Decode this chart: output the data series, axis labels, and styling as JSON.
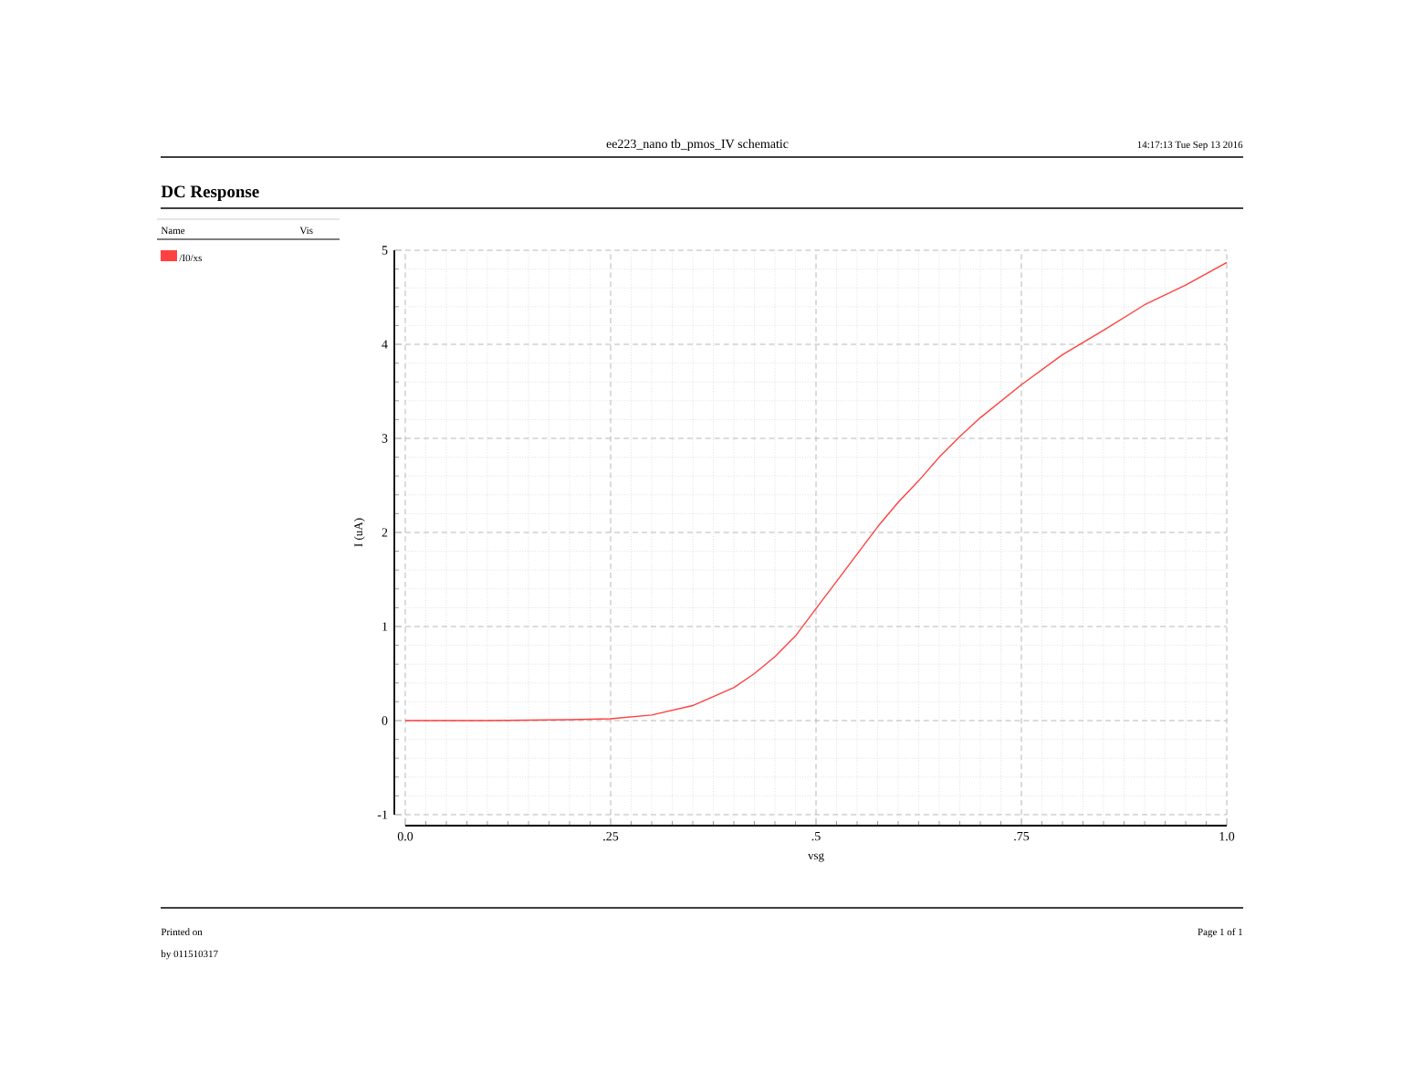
{
  "chart_data": {
    "type": "line",
    "title": "DC Response",
    "subtitle": "ee223_nano tb_pmos_IV schematic",
    "xlabel": "vsg",
    "ylabel": "I (uA)",
    "legend_title": "Name",
    "annotations": [
      "Vis",
      "14:17:13  Tue Sep 13 2016",
      "Printed on",
      "by 011510317",
      "Page 1 of 1"
    ],
    "series": [
      {
        "name": "/I0/xs",
        "color": "#ff4040",
        "x": [
          0,
          0.1,
          0.2,
          0.25,
          0.3,
          0.35,
          0.4,
          0.425,
          0.45,
          0.475,
          0.5,
          0.525,
          0.55,
          0.575,
          0.6,
          0.625,
          0.65,
          0.675,
          0.7,
          0.75,
          0.8,
          0.825,
          0.85,
          0.9,
          0.95,
          1.0
        ],
        "values": [
          0,
          0,
          0.01,
          0.02,
          0.06,
          0.16,
          0.35,
          0.5,
          0.68,
          0.9,
          1.19,
          1.48,
          1.77,
          2.06,
          2.32,
          2.55,
          2.8,
          3.02,
          3.22,
          3.57,
          3.89,
          4.02,
          4.15,
          4.42,
          4.63,
          4.87
        ]
      }
    ],
    "xlim": [
      0,
      1.0
    ],
    "ylim": [
      -1,
      5
    ],
    "xticks": [
      {
        "value": 0,
        "label": "0.0"
      },
      {
        "value": 0.25,
        "label": ".25"
      },
      {
        "value": 0.5,
        "label": ".5"
      },
      {
        "value": 0.75,
        "label": ".75"
      },
      {
        "value": 1.0,
        "label": "1.0"
      }
    ],
    "yticks": [
      -1,
      0,
      1,
      2,
      3,
      4,
      5
    ],
    "grid": true,
    "legend": "left",
    "marker": "none",
    "line_style": "solid"
  }
}
